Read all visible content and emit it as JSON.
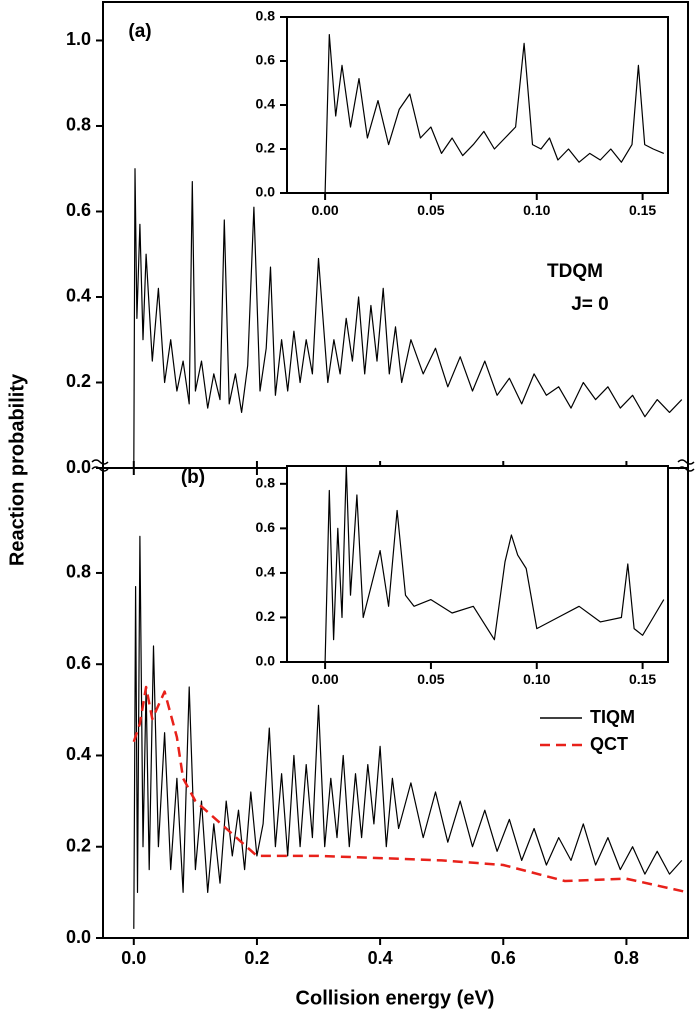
{
  "chart_data": [
    {
      "type": "line",
      "ylabel": "Reaction probability",
      "annotations": [
        "(a)",
        "TDQM",
        "J= 0"
      ],
      "color": "#000000",
      "xlim": [
        -0.05,
        0.9
      ],
      "ylim": [
        0,
        1.09
      ],
      "xticks": [
        0,
        0.2,
        0.4,
        0.6,
        0.8
      ],
      "yticks": [
        {
          "value": 0,
          "label": "0.0"
        },
        {
          "value": 0.2,
          "label": "0.2"
        },
        {
          "value": 0.4,
          "label": "0.4"
        },
        {
          "value": 0.6,
          "label": "0.6"
        },
        {
          "value": 0.8,
          "label": "0.8"
        },
        {
          "value": 1.0,
          "label": "1.0"
        }
      ],
      "x": [
        0,
        0.002,
        0.005,
        0.01,
        0.015,
        0.02,
        0.03,
        0.04,
        0.05,
        0.06,
        0.07,
        0.08,
        0.09,
        0.095,
        0.1,
        0.11,
        0.12,
        0.13,
        0.14,
        0.147,
        0.155,
        0.165,
        0.175,
        0.185,
        0.195,
        0.205,
        0.215,
        0.222,
        0.23,
        0.24,
        0.25,
        0.26,
        0.27,
        0.28,
        0.29,
        0.3,
        0.315,
        0.325,
        0.335,
        0.345,
        0.355,
        0.365,
        0.375,
        0.385,
        0.395,
        0.405,
        0.415,
        0.425,
        0.435,
        0.45,
        0.47,
        0.49,
        0.51,
        0.53,
        0.55,
        0.57,
        0.59,
        0.61,
        0.63,
        0.65,
        0.67,
        0.69,
        0.71,
        0.73,
        0.75,
        0.77,
        0.79,
        0.81,
        0.83,
        0.85,
        0.87,
        0.89
      ],
      "values": [
        0,
        0.7,
        0.35,
        0.57,
        0.3,
        0.5,
        0.25,
        0.42,
        0.2,
        0.3,
        0.18,
        0.25,
        0.15,
        0.67,
        0.18,
        0.25,
        0.14,
        0.22,
        0.16,
        0.58,
        0.15,
        0.22,
        0.13,
        0.24,
        0.61,
        0.18,
        0.28,
        0.47,
        0.17,
        0.3,
        0.18,
        0.32,
        0.2,
        0.3,
        0.22,
        0.49,
        0.2,
        0.3,
        0.22,
        0.35,
        0.25,
        0.4,
        0.22,
        0.38,
        0.25,
        0.42,
        0.22,
        0.33,
        0.2,
        0.3,
        0.22,
        0.28,
        0.19,
        0.26,
        0.18,
        0.25,
        0.17,
        0.21,
        0.15,
        0.22,
        0.17,
        0.19,
        0.14,
        0.2,
        0.16,
        0.19,
        0.14,
        0.17,
        0.12,
        0.16,
        0.13,
        0.16
      ]
    },
    {
      "type": "line",
      "xlabel": "Collision energy (eV)",
      "annotations": [
        "(b)"
      ],
      "xlim": [
        -0.05,
        0.9
      ],
      "ylim": [
        0,
        1.03
      ],
      "xticks": [
        {
          "value": 0,
          "label": "0.0"
        },
        {
          "value": 0.2,
          "label": "0.2"
        },
        {
          "value": 0.4,
          "label": "0.4"
        },
        {
          "value": 0.6,
          "label": "0.6"
        },
        {
          "value": 0.8,
          "label": "0.8"
        }
      ],
      "yticks": [
        {
          "value": 0,
          "label": "0.0"
        },
        {
          "value": 0.2,
          "label": "0.2"
        },
        {
          "value": 0.4,
          "label": "0.4"
        },
        {
          "value": 0.6,
          "label": "0.6"
        },
        {
          "value": 0.8,
          "label": "0.8"
        }
      ],
      "series": [
        {
          "name": "TIQM",
          "color": "#000000",
          "dash": false,
          "x": [
            0,
            0.003,
            0.006,
            0.01,
            0.015,
            0.02,
            0.025,
            0.032,
            0.04,
            0.05,
            0.06,
            0.07,
            0.08,
            0.09,
            0.1,
            0.11,
            0.12,
            0.13,
            0.14,
            0.15,
            0.16,
            0.17,
            0.18,
            0.19,
            0.2,
            0.21,
            0.22,
            0.23,
            0.24,
            0.25,
            0.26,
            0.27,
            0.28,
            0.29,
            0.3,
            0.31,
            0.32,
            0.33,
            0.34,
            0.35,
            0.36,
            0.37,
            0.38,
            0.39,
            0.4,
            0.41,
            0.42,
            0.43,
            0.45,
            0.47,
            0.49,
            0.51,
            0.53,
            0.55,
            0.57,
            0.59,
            0.61,
            0.63,
            0.65,
            0.67,
            0.69,
            0.71,
            0.73,
            0.75,
            0.77,
            0.79,
            0.81,
            0.83,
            0.85,
            0.87,
            0.89
          ],
          "values": [
            0.02,
            0.77,
            0.1,
            0.88,
            0.2,
            0.55,
            0.15,
            0.64,
            0.2,
            0.45,
            0.15,
            0.35,
            0.1,
            0.55,
            0.15,
            0.3,
            0.1,
            0.25,
            0.12,
            0.3,
            0.18,
            0.28,
            0.15,
            0.32,
            0.18,
            0.25,
            0.46,
            0.2,
            0.36,
            0.18,
            0.4,
            0.2,
            0.38,
            0.22,
            0.51,
            0.2,
            0.35,
            0.22,
            0.4,
            0.2,
            0.36,
            0.22,
            0.38,
            0.25,
            0.42,
            0.2,
            0.35,
            0.24,
            0.34,
            0.22,
            0.32,
            0.21,
            0.3,
            0.2,
            0.28,
            0.19,
            0.26,
            0.17,
            0.24,
            0.16,
            0.22,
            0.17,
            0.25,
            0.16,
            0.22,
            0.15,
            0.2,
            0.14,
            0.19,
            0.14,
            0.17
          ]
        },
        {
          "name": "QCT",
          "color": "#e8211a",
          "dash": true,
          "x": [
            0,
            0.01,
            0.02,
            0.03,
            0.05,
            0.07,
            0.08,
            0.1,
            0.15,
            0.2,
            0.3,
            0.4,
            0.5,
            0.6,
            0.7,
            0.8,
            0.9
          ],
          "values": [
            0.43,
            0.47,
            0.55,
            0.48,
            0.54,
            0.44,
            0.35,
            0.3,
            0.24,
            0.18,
            0.18,
            0.175,
            0.17,
            0.16,
            0.125,
            0.13,
            0.1
          ]
        }
      ]
    },
    {
      "type": "line",
      "color": "#000000",
      "xlim": [
        -0.018,
        0.162
      ],
      "ylim": [
        0,
        0.8
      ],
      "xticks": [
        {
          "value": 0,
          "label": "0.00"
        },
        {
          "value": 0.05,
          "label": "0.05"
        },
        {
          "value": 0.1,
          "label": "0.10"
        },
        {
          "value": 0.15,
          "label": "0.15"
        }
      ],
      "yticks": [
        {
          "value": 0,
          "label": "0.0"
        },
        {
          "value": 0.2,
          "label": "0.2"
        },
        {
          "value": 0.4,
          "label": "0.4"
        },
        {
          "value": 0.6,
          "label": "0.6"
        },
        {
          "value": 0.8,
          "label": "0.8"
        }
      ],
      "x": [
        0,
        0.002,
        0.005,
        0.008,
        0.012,
        0.016,
        0.02,
        0.025,
        0.03,
        0.035,
        0.04,
        0.045,
        0.05,
        0.055,
        0.06,
        0.065,
        0.07,
        0.075,
        0.08,
        0.085,
        0.09,
        0.094,
        0.098,
        0.102,
        0.106,
        0.11,
        0.115,
        0.12,
        0.125,
        0.13,
        0.135,
        0.14,
        0.145,
        0.148,
        0.151,
        0.155,
        0.16
      ],
      "values": [
        0,
        0.72,
        0.35,
        0.58,
        0.3,
        0.52,
        0.25,
        0.42,
        0.22,
        0.38,
        0.45,
        0.25,
        0.3,
        0.18,
        0.25,
        0.17,
        0.22,
        0.28,
        0.2,
        0.25,
        0.3,
        0.68,
        0.22,
        0.2,
        0.25,
        0.15,
        0.2,
        0.14,
        0.18,
        0.15,
        0.2,
        0.14,
        0.22,
        0.58,
        0.22,
        0.2,
        0.18
      ]
    },
    {
      "type": "line",
      "color": "#000000",
      "xlim": [
        -0.018,
        0.162
      ],
      "ylim": [
        0,
        0.88
      ],
      "xticks": [
        {
          "value": 0,
          "label": "0.00"
        },
        {
          "value": 0.05,
          "label": "0.05"
        },
        {
          "value": 0.1,
          "label": "0.10"
        },
        {
          "value": 0.15,
          "label": "0.15"
        }
      ],
      "yticks": [
        {
          "value": 0,
          "label": "0.0"
        },
        {
          "value": 0.2,
          "label": "0.2"
        },
        {
          "value": 0.4,
          "label": "0.4"
        },
        {
          "value": 0.6,
          "label": "0.6"
        },
        {
          "value": 0.8,
          "label": "0.8"
        }
      ],
      "x": [
        0,
        0.002,
        0.004,
        0.006,
        0.008,
        0.01,
        0.012,
        0.015,
        0.018,
        0.022,
        0.026,
        0.03,
        0.034,
        0.038,
        0.042,
        0.05,
        0.06,
        0.07,
        0.08,
        0.085,
        0.088,
        0.091,
        0.095,
        0.1,
        0.11,
        0.12,
        0.13,
        0.14,
        0.143,
        0.146,
        0.15,
        0.155,
        0.16
      ],
      "values": [
        0,
        0.77,
        0.1,
        0.6,
        0.2,
        0.88,
        0.3,
        0.75,
        0.2,
        0.35,
        0.5,
        0.25,
        0.68,
        0.3,
        0.25,
        0.28,
        0.22,
        0.25,
        0.1,
        0.45,
        0.57,
        0.48,
        0.42,
        0.15,
        0.2,
        0.25,
        0.18,
        0.2,
        0.44,
        0.15,
        0.12,
        0.2,
        0.28
      ]
    }
  ]
}
